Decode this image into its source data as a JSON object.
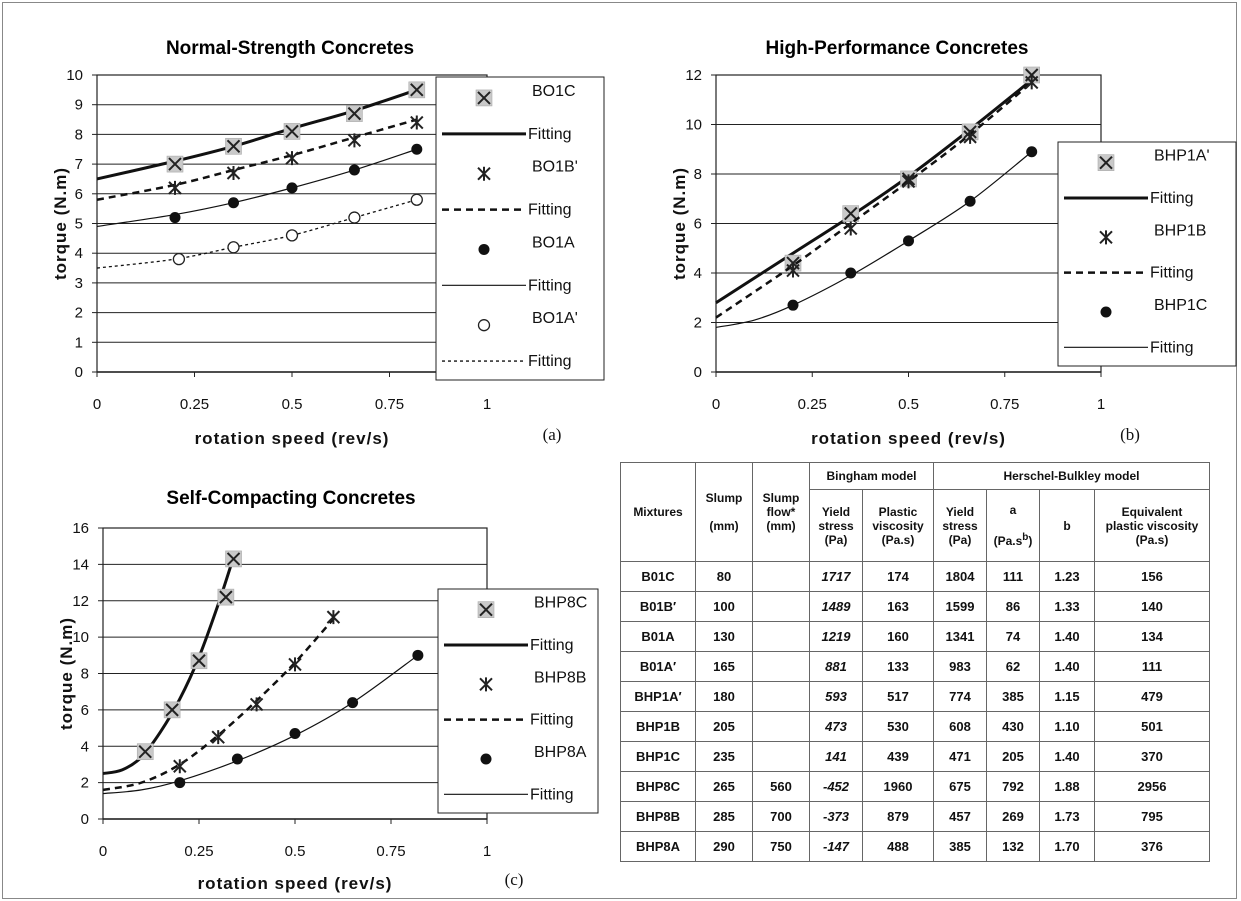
{
  "chart_data": [
    {
      "type": "scatter",
      "panel_label": "(a)",
      "title": "Normal-Strength Concretes",
      "xlabel": "rotation speed (rev/s)",
      "ylabel": "torque (N.m)",
      "xlim": [
        0,
        1
      ],
      "ylim": [
        0,
        10
      ],
      "xticks": [
        "0",
        "0.25",
        "0.5",
        "0.75",
        "1"
      ],
      "yticks": [
        "0",
        "1",
        "2",
        "3",
        "4",
        "5",
        "6",
        "7",
        "8",
        "9",
        "10"
      ],
      "grid": "horizontal",
      "legend_position": "right",
      "series": [
        {
          "name": "BO1C",
          "marker": "x-boxed",
          "x": [
            0.2,
            0.35,
            0.5,
            0.66,
            0.82
          ],
          "y": [
            7.0,
            7.6,
            8.1,
            8.7,
            9.5
          ],
          "fit_name": "Fitting",
          "fit_style": "thick",
          "fit": {
            "x": [
              0,
              0.2,
              0.35,
              0.5,
              0.66,
              0.82
            ],
            "y": [
              6.5,
              7.1,
              7.6,
              8.2,
              8.8,
              9.5
            ]
          }
        },
        {
          "name": "BO1B'",
          "marker": "asterisk",
          "x": [
            0.2,
            0.35,
            0.5,
            0.66,
            0.82
          ],
          "y": [
            6.2,
            6.7,
            7.2,
            7.8,
            8.4
          ],
          "fit_name": "Fitting",
          "fit_style": "dashed",
          "fit": {
            "x": [
              0,
              0.2,
              0.35,
              0.5,
              0.66,
              0.82
            ],
            "y": [
              5.8,
              6.3,
              6.8,
              7.3,
              7.9,
              8.5
            ]
          }
        },
        {
          "name": "BO1A",
          "marker": "filled-circle",
          "x": [
            0.2,
            0.35,
            0.5,
            0.66,
            0.82
          ],
          "y": [
            5.2,
            5.7,
            6.2,
            6.8,
            7.5
          ],
          "fit_name": "Fitting",
          "fit_style": "thin",
          "fit": {
            "x": [
              0,
              0.2,
              0.35,
              0.5,
              0.66,
              0.82
            ],
            "y": [
              4.9,
              5.3,
              5.7,
              6.2,
              6.8,
              7.5
            ]
          }
        },
        {
          "name": "BO1A'",
          "marker": "open-circle",
          "x": [
            0.21,
            0.35,
            0.5,
            0.66,
            0.82
          ],
          "y": [
            3.8,
            4.2,
            4.6,
            5.2,
            5.8
          ],
          "fit_name": "Fitting",
          "fit_style": "dotted",
          "fit": {
            "x": [
              0,
              0.2,
              0.35,
              0.5,
              0.66,
              0.82
            ],
            "y": [
              3.5,
              3.8,
              4.2,
              4.6,
              5.2,
              5.8
            ]
          }
        }
      ]
    },
    {
      "type": "scatter",
      "panel_label": "(b)",
      "title": "High-Performance Concretes",
      "xlabel": "rotation speed (rev/s)",
      "ylabel": "torque (N.m)",
      "xlim": [
        0,
        1
      ],
      "ylim": [
        0,
        12
      ],
      "xticks": [
        "0",
        "0.25",
        "0.5",
        "0.75",
        "1"
      ],
      "yticks": [
        "0",
        "2",
        "4",
        "6",
        "8",
        "10",
        "12"
      ],
      "grid": "horizontal",
      "legend_position": "right",
      "series": [
        {
          "name": "BHP1A'",
          "marker": "x-boxed",
          "x": [
            0.2,
            0.35,
            0.5,
            0.66,
            0.82
          ],
          "y": [
            4.4,
            6.4,
            7.8,
            9.7,
            12.0
          ],
          "fit_name": "Fitting",
          "fit_style": "thick",
          "fit": {
            "x": [
              0,
              0.2,
              0.35,
              0.5,
              0.66,
              0.82
            ],
            "y": [
              2.8,
              4.8,
              6.3,
              7.9,
              9.8,
              11.8
            ]
          }
        },
        {
          "name": "BHP1B",
          "marker": "asterisk",
          "x": [
            0.2,
            0.35,
            0.5,
            0.66,
            0.82
          ],
          "y": [
            4.1,
            5.8,
            7.7,
            9.5,
            11.7
          ],
          "fit_name": "Fitting",
          "fit_style": "dashed",
          "fit": {
            "x": [
              0,
              0.2,
              0.35,
              0.5,
              0.66,
              0.82
            ],
            "y": [
              2.2,
              4.3,
              6.0,
              7.7,
              9.6,
              11.7
            ]
          }
        },
        {
          "name": "BHP1C",
          "marker": "filled-circle",
          "x": [
            0.2,
            0.35,
            0.5,
            0.66,
            0.82
          ],
          "y": [
            2.7,
            4.0,
            5.3,
            6.9,
            8.9
          ],
          "fit_name": "Fitting",
          "fit_style": "thin",
          "fit": {
            "x": [
              0,
              0.1,
              0.2,
              0.35,
              0.5,
              0.66,
              0.82
            ],
            "y": [
              1.8,
              2.1,
              2.7,
              3.9,
              5.3,
              6.9,
              8.9
            ]
          }
        }
      ]
    },
    {
      "type": "scatter",
      "panel_label": "(c)",
      "title": "Self-Compacting Concretes",
      "xlabel": "rotation speed (rev/s)",
      "ylabel": "torque (N.m)",
      "xlim": [
        0,
        1
      ],
      "ylim": [
        0,
        16
      ],
      "xticks": [
        "0",
        "0.25",
        "0.5",
        "0.75",
        "1"
      ],
      "yticks": [
        "0",
        "2",
        "4",
        "6",
        "8",
        "10",
        "12",
        "14",
        "16"
      ],
      "grid": "horizontal",
      "legend_position": "right",
      "series": [
        {
          "name": "BHP8C",
          "marker": "x-boxed",
          "x": [
            0.11,
            0.18,
            0.25,
            0.32,
            0.34
          ],
          "y": [
            3.7,
            6.0,
            8.7,
            12.2,
            14.3
          ],
          "fit_name": "Fitting",
          "fit_style": "thick",
          "fit": {
            "x": [
              0,
              0.05,
              0.1,
              0.15,
              0.2,
              0.25,
              0.3,
              0.34
            ],
            "y": [
              2.5,
              2.7,
              3.4,
              4.8,
              6.6,
              8.9,
              11.8,
              14.4
            ]
          }
        },
        {
          "name": "BHP8B",
          "marker": "asterisk",
          "x": [
            0.2,
            0.3,
            0.4,
            0.5,
            0.6
          ],
          "y": [
            2.9,
            4.5,
            6.3,
            8.5,
            11.1
          ],
          "fit_name": "Fitting",
          "fit_style": "dashed",
          "fit": {
            "x": [
              0,
              0.1,
              0.2,
              0.3,
              0.4,
              0.5,
              0.6
            ],
            "y": [
              1.6,
              2.0,
              3.0,
              4.6,
              6.5,
              8.6,
              11.0
            ]
          }
        },
        {
          "name": "BHP8A",
          "marker": "filled-circle",
          "x": [
            0.2,
            0.35,
            0.5,
            0.65,
            0.82
          ],
          "y": [
            2.0,
            3.3,
            4.7,
            6.4,
            9.0
          ],
          "fit_name": "Fitting",
          "fit_style": "thin",
          "fit": {
            "x": [
              0,
              0.1,
              0.2,
              0.35,
              0.5,
              0.65,
              0.82
            ],
            "y": [
              1.4,
              1.6,
              2.1,
              3.2,
              4.6,
              6.4,
              9.0
            ]
          }
        }
      ]
    }
  ],
  "table": {
    "group_headers": {
      "bingham": "Bingham model",
      "hb": "Herschel-Bulkley model"
    },
    "columns": {
      "mixtures": "Mixtures",
      "slump_1": "Slump",
      "slump_2": "(mm)",
      "flow_1": "Slump",
      "flow_2": "flow*",
      "flow_3": "(mm)",
      "bys_1": "Yield",
      "bys_2": "stress",
      "bys_3": "(Pa)",
      "pv_1": "Plastic",
      "pv_2": "viscosity",
      "pv_3": "(Pa.s)",
      "hys_1": "Yield",
      "hys_2": "stress",
      "hys_3": "(Pa)",
      "a_1": "a",
      "a_2": "(Pa.s",
      "a_sup": "b",
      "a_3": ")",
      "b": "b",
      "eq_1": "Equivalent",
      "eq_2": "plastic viscosity",
      "eq_3": "(Pa.s)"
    },
    "rows": [
      [
        "B01C",
        "80",
        "",
        "1717",
        "174",
        "1804",
        "111",
        "1.23",
        "156"
      ],
      [
        "B01B′",
        "100",
        "",
        "1489",
        "163",
        "1599",
        "86",
        "1.33",
        "140"
      ],
      [
        "B01A",
        "130",
        "",
        "1219",
        "160",
        "1341",
        "74",
        "1.40",
        "134"
      ],
      [
        "B01A′",
        "165",
        "",
        "881",
        "133",
        "983",
        "62",
        "1.40",
        "111"
      ],
      [
        "BHP1A′",
        "180",
        "",
        "593",
        "517",
        "774",
        "385",
        "1.15",
        "479"
      ],
      [
        "BHP1B",
        "205",
        "",
        "473",
        "530",
        "608",
        "430",
        "1.10",
        "501"
      ],
      [
        "BHP1C",
        "235",
        "",
        "141",
        "439",
        "471",
        "205",
        "1.40",
        "370"
      ],
      [
        "BHP8C",
        "265",
        "560",
        "-452",
        "1960",
        "675",
        "792",
        "1.88",
        "2956"
      ],
      [
        "BHP8B",
        "285",
        "700",
        "-373",
        "879",
        "457",
        "269",
        "1.73",
        "795"
      ],
      [
        "BHP8A",
        "290",
        "750",
        "-147",
        "488",
        "385",
        "132",
        "1.70",
        "376"
      ]
    ],
    "italic_column": 3
  }
}
